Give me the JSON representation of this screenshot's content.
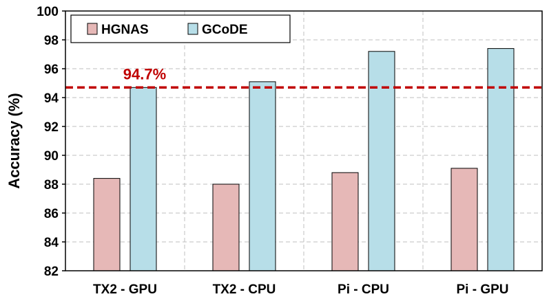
{
  "chart_data": {
    "type": "bar",
    "categories": [
      "TX2 - GPU",
      "TX2 - CPU",
      "Pi - CPU",
      "Pi - GPU"
    ],
    "series": [
      {
        "name": "HGNAS",
        "values": [
          88.4,
          88.0,
          88.8,
          89.1
        ],
        "color": "#E6B8B7"
      },
      {
        "name": "GCoDE",
        "values": [
          94.7,
          95.1,
          97.2,
          97.4
        ],
        "color": "#B7DEE8"
      }
    ],
    "title": "",
    "xlabel": "",
    "ylabel": "Accuracy (%)",
    "ylim": [
      82,
      100
    ],
    "yticks": [
      82,
      84,
      86,
      88,
      90,
      92,
      94,
      96,
      98,
      100
    ],
    "grid": true,
    "legend": "top-left",
    "reference_line": {
      "value": 94.7,
      "label": "94.7%",
      "color": "#C00000",
      "style": "dashed"
    }
  }
}
